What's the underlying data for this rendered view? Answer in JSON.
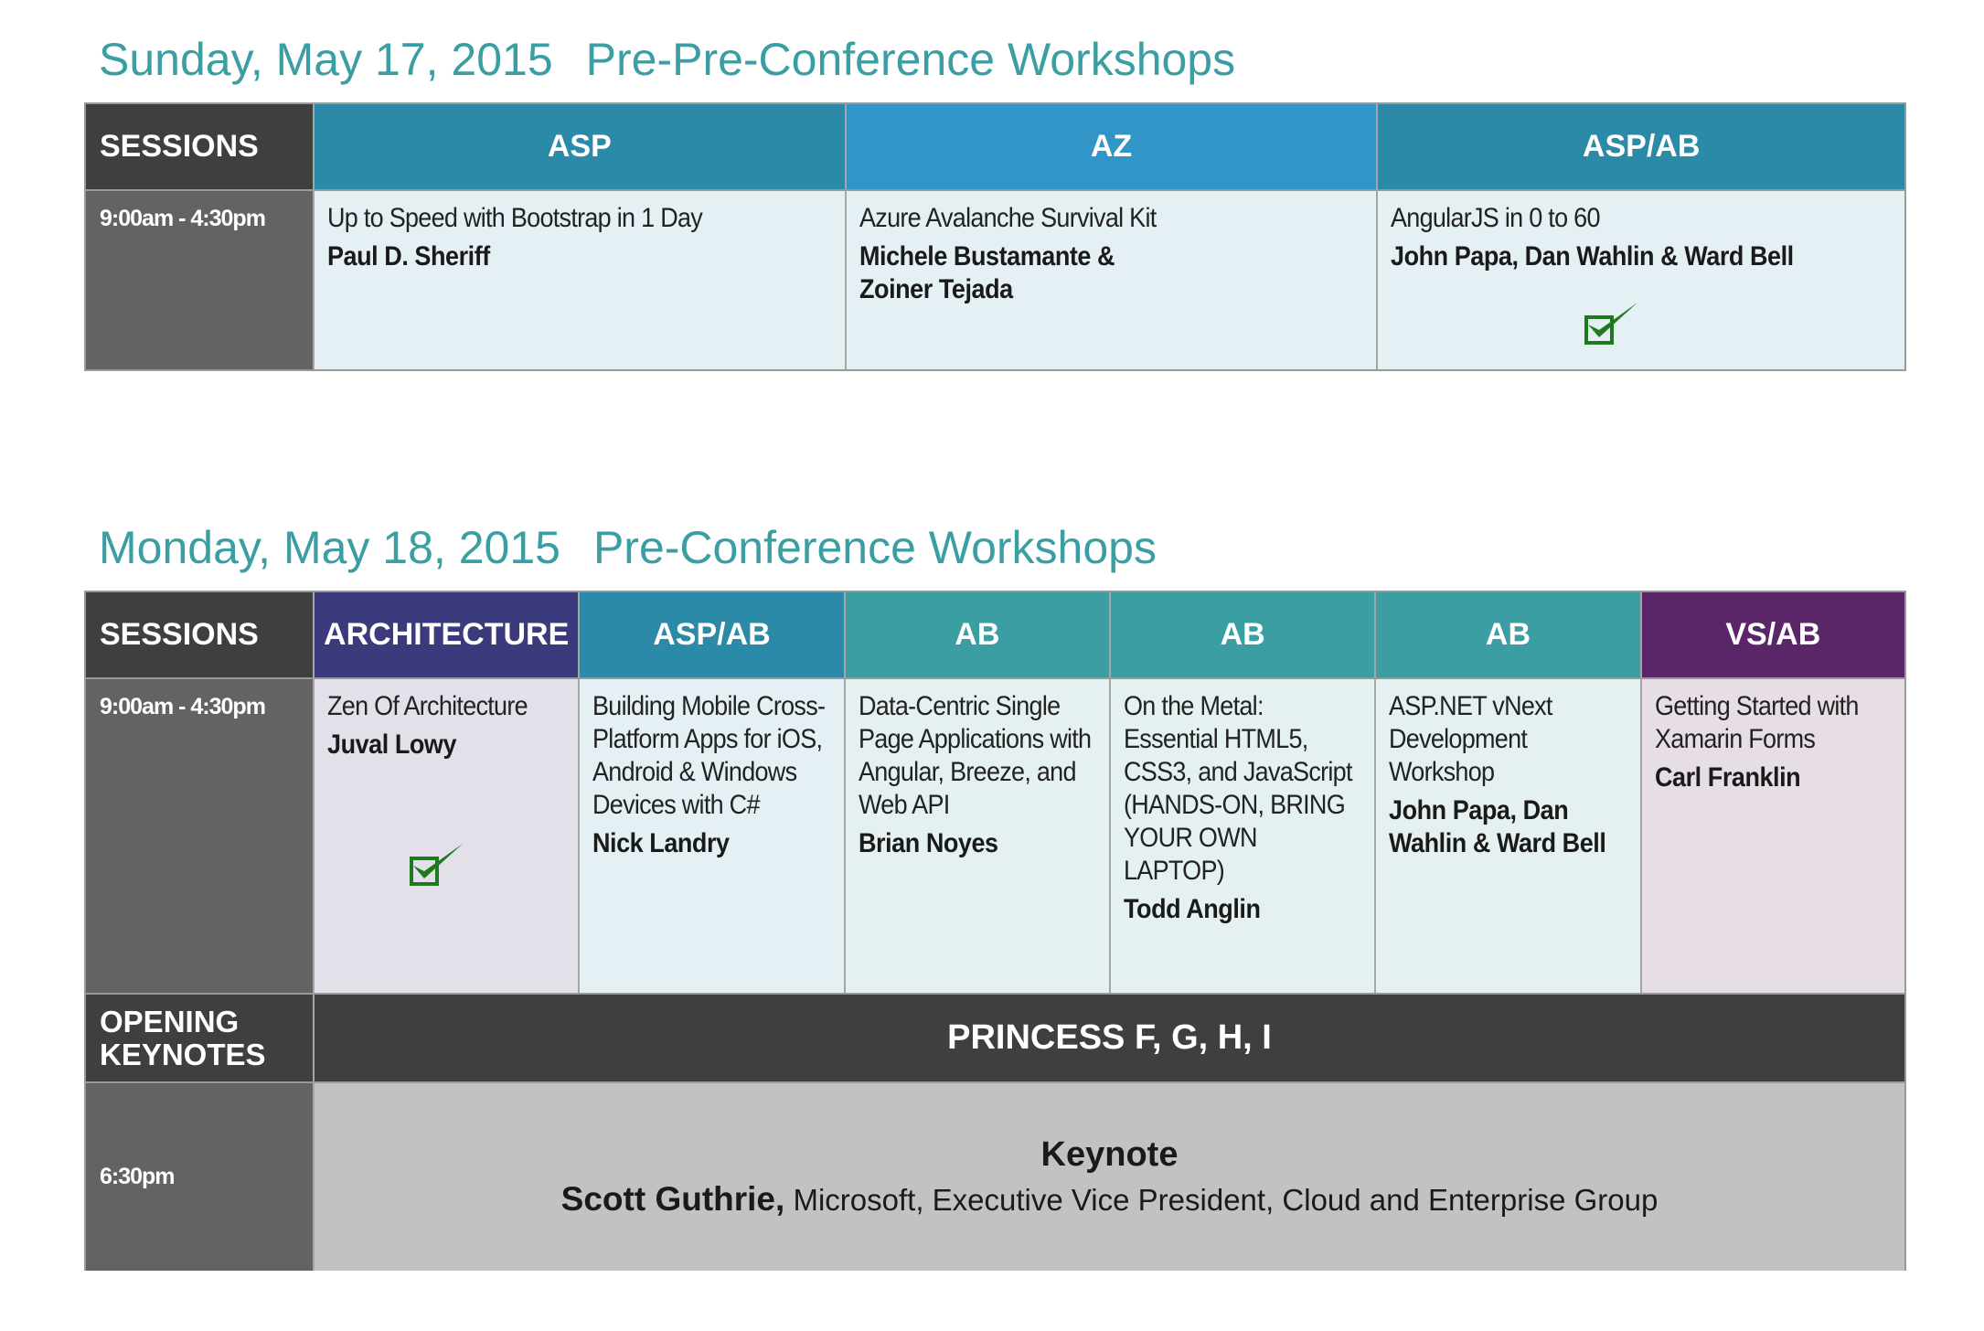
{
  "day1": {
    "date": "Sunday, May 17, 2015",
    "subtitle": "Pre-Pre-Conference Workshops",
    "sessions_label": "SESSIONS",
    "time": "9:00am - 4:30pm",
    "tracks": [
      {
        "code": "ASP",
        "title": "Up to Speed with Bootstrap in 1 Day",
        "speaker": "Paul D. Sheriff",
        "checked": false,
        "header_color": "#2b8aa8",
        "cell_color": "#e4f0f4"
      },
      {
        "code": "AZ",
        "title": "Azure Avalanche Survival Kit",
        "speaker": "Michele Bustamante & Zoiner Tejada",
        "checked": false,
        "header_color": "#3195c8",
        "cell_color": "#e4f0f4"
      },
      {
        "code": "ASP/AB",
        "title": "AngularJS in 0 to 60",
        "speaker": "John Papa, Dan Wahlin & Ward Bell",
        "checked": true,
        "header_color": "#2b8aa8",
        "cell_color": "#e4f0f4"
      }
    ]
  },
  "day2": {
    "date": "Monday, May 18, 2015",
    "subtitle": "Pre-Conference Workshops",
    "sessions_label": "SESSIONS",
    "time": "9:00am - 4:30pm",
    "tracks": [
      {
        "code": "ARCHITECTURE",
        "title": "Zen Of Architecture",
        "speaker": "Juval Lowy",
        "checked": true,
        "header_color": "#3a3a7c",
        "cell_color": "#e3e0ea"
      },
      {
        "code": "ASP/AB",
        "title": "Building Mobile Cross-Platform Apps for iOS, Android & Windows Devices with C#",
        "speaker": "Nick Landry",
        "checked": false,
        "header_color": "#2b8aa8",
        "cell_color": "#e4f0f4"
      },
      {
        "code": "AB",
        "title": "Data-Centric Single Page Applications with Angular, Breeze, and Web API",
        "speaker": "Brian Noyes",
        "checked": false,
        "header_color": "#3a9ea3",
        "cell_color": "#e5f1f1"
      },
      {
        "code": "AB",
        "title": "On the Metal: Essential HTML5, CSS3, and JavaScript (HANDS-ON, BRING YOUR OWN LAPTOP)",
        "speaker": "Todd Anglin",
        "checked": false,
        "header_color": "#3a9ea3",
        "cell_color": "#e5f1f1"
      },
      {
        "code": "AB",
        "title": "ASP.NET vNext Development Workshop",
        "speaker": "John Papa, Dan Wahlin & Ward Bell",
        "checked": false,
        "header_color": "#3a9ea3",
        "cell_color": "#e5f1f1"
      },
      {
        "code": "VS/AB",
        "title": "Getting Started with Xamarin Forms",
        "speaker": "Carl Franklin",
        "checked": false,
        "header_color": "#5a2668",
        "cell_color": "#e6dde5"
      }
    ],
    "opening_label": "OPENING KEYNOTES",
    "room": "PRINCESS F, G, H, I",
    "keynote_time": "6:30pm",
    "keynote_title": "Keynote",
    "keynote_speaker": "Scott Guthrie,",
    "keynote_affiliation": " Microsoft, Executive Vice President, Cloud and Enterprise Group"
  },
  "icons": {
    "check": "green-checkmark-icon"
  },
  "colors": {
    "title": "#3a9ea3",
    "label_bg": "#3f3f3e",
    "time_bg": "#636363",
    "keynote_bg": "#c2c2c1",
    "check": "#1f7a1f"
  }
}
